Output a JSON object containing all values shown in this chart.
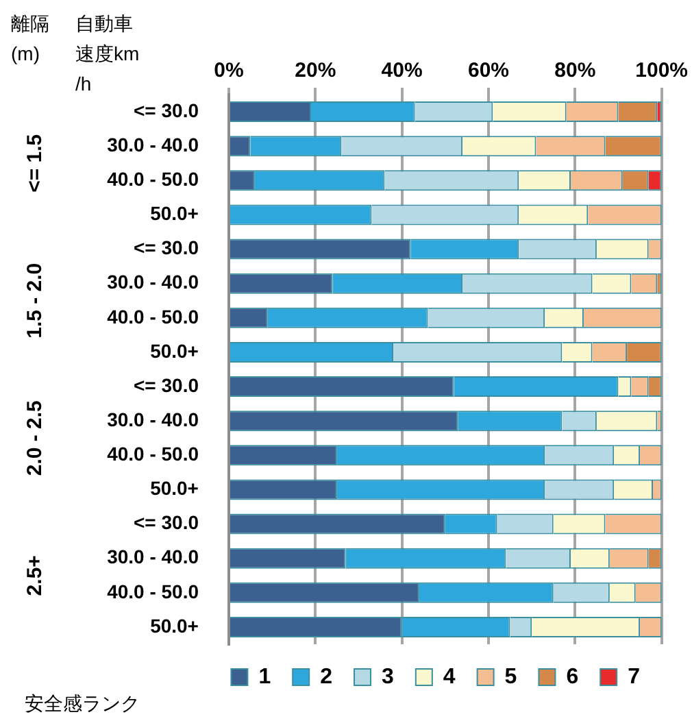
{
  "chart_data": {
    "type": "bar",
    "orientation": "horizontal",
    "stacked": true,
    "ylabel": "自動車速度km/h",
    "legend_title": "安全感ランク",
    "annotations": [
      "離隔(m)",
      "<= 1.5",
      "1.5 - 2.0",
      "2.0 - 2.5",
      "2.5+"
    ],
    "categories": [
      "<= 30.0",
      "30.0 - 40.0",
      "40.0 - 50.0",
      "50.0+",
      "<= 30.0",
      "30.0 - 40.0",
      "40.0 - 50.0",
      "50.0+",
      "<= 30.0",
      "30.0 - 40.0",
      "40.0 - 50.0",
      "50.0+",
      "<= 30.0",
      "30.0 - 40.0",
      "40.0 - 50.0",
      "50.0+"
    ],
    "series": [
      {
        "name": "1",
        "color": "#3c6090",
        "values": [
          19,
          5,
          6,
          0,
          42,
          24,
          9,
          0,
          52,
          53,
          25,
          25,
          50,
          27,
          44,
          40
        ]
      },
      {
        "name": "2",
        "color": "#2ea8dc",
        "values": [
          24,
          21,
          30,
          33,
          25,
          30,
          37,
          38,
          38,
          24,
          48,
          48,
          12,
          37,
          31,
          25
        ]
      },
      {
        "name": "3",
        "color": "#b5dae6",
        "values": [
          18,
          28,
          31,
          34,
          18,
          30,
          27,
          39,
          0,
          8,
          16,
          16,
          13,
          15,
          13,
          5
        ]
      },
      {
        "name": "4",
        "color": "#fbf8d0",
        "values": [
          17,
          17,
          12,
          16,
          12,
          9,
          9,
          7,
          3,
          14,
          6,
          9,
          12,
          9,
          6,
          25
        ]
      },
      {
        "name": "5",
        "color": "#f4bd92",
        "values": [
          12,
          16,
          12,
          17,
          3,
          6,
          18,
          8,
          4,
          1,
          5,
          2,
          13,
          9,
          6,
          5
        ]
      },
      {
        "name": "6",
        "color": "#d4884a",
        "values": [
          9,
          13,
          6,
          0,
          0,
          1,
          0,
          8,
          3,
          0,
          0,
          0,
          0,
          3,
          0,
          0
        ]
      },
      {
        "name": "7",
        "color": "#e82a2a",
        "values": [
          1,
          0,
          3,
          0,
          0,
          0,
          0,
          0,
          0,
          0,
          0,
          0,
          0,
          0,
          0,
          0
        ]
      }
    ],
    "xlim": [
      0,
      100
    ],
    "xticks": [
      {
        "value": 0,
        "label": "0%"
      },
      {
        "value": 20,
        "label": "20%"
      },
      {
        "value": 40,
        "label": "40%"
      },
      {
        "value": 60,
        "label": "60%"
      },
      {
        "value": 80,
        "label": "80%"
      },
      {
        "value": 100,
        "label": "100%"
      }
    ],
    "grid": "x",
    "legend": "bottom"
  }
}
